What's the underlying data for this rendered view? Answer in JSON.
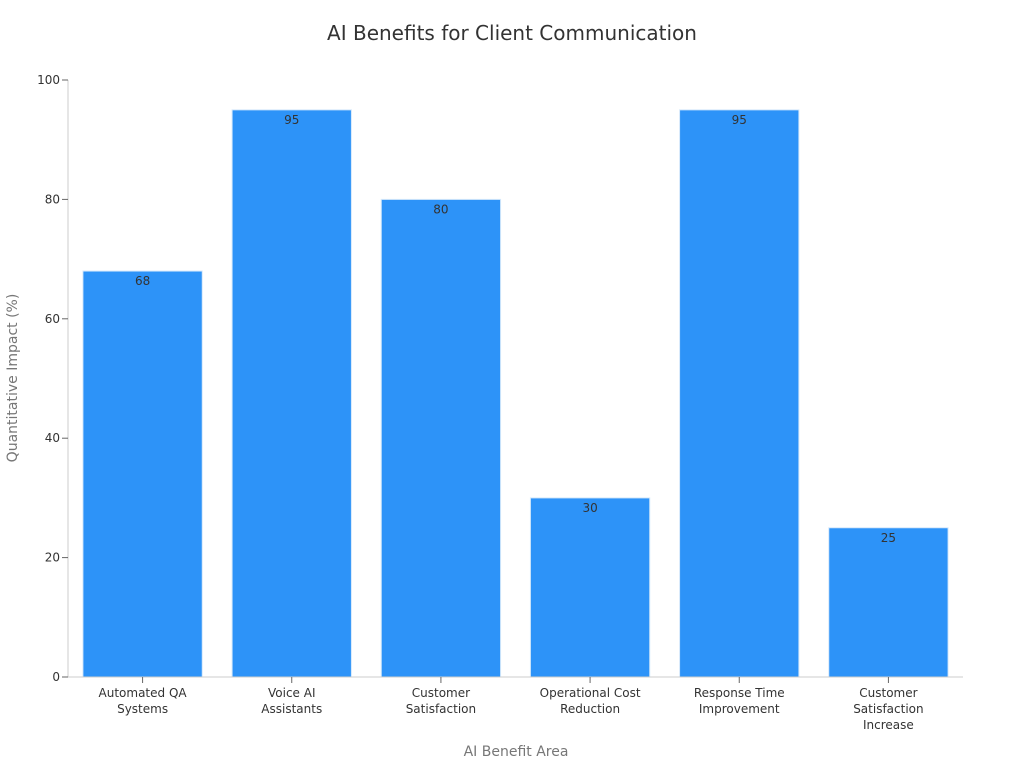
{
  "chart_data": {
    "type": "bar",
    "title": "AI Benefits for Client Communication",
    "xlabel": "AI Benefit Area",
    "ylabel": "Quantitative Impact (%)",
    "categories": [
      [
        "Automated QA",
        "Systems"
      ],
      [
        "Voice AI",
        "Assistants"
      ],
      [
        "Customer",
        "Satisfaction"
      ],
      [
        "Operational Cost",
        "Reduction"
      ],
      [
        "Response Time",
        "Improvement"
      ],
      [
        "Customer",
        "Satisfaction",
        "Increase"
      ]
    ],
    "values": [
      68,
      95,
      80,
      30,
      95,
      25
    ],
    "ylim": [
      0,
      100
    ],
    "yticks": [
      0,
      20,
      40,
      60,
      80,
      100
    ],
    "grid": false,
    "legend": "none",
    "bar_color": "#2d93f8",
    "data_labels": true
  }
}
